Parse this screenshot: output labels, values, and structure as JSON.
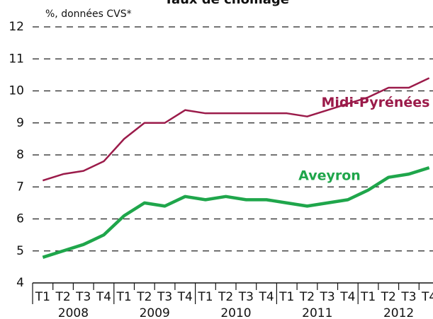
{
  "chart_data": {
    "type": "line",
    "title": "Taux de chômage",
    "subtitle": "%, données CVS*",
    "categories": [
      "T1",
      "T2",
      "T3",
      "T4",
      "T1",
      "T2",
      "T3",
      "T4",
      "T1",
      "T2",
      "T3",
      "T4",
      "T1",
      "T2",
      "T3",
      "T4",
      "T1",
      "T2",
      "T3",
      "T4"
    ],
    "groups": [
      "2008",
      "2009",
      "2010",
      "2011",
      "2012"
    ],
    "series": [
      {
        "name": "Midi-Pyrénées",
        "color": "#9b1b4a",
        "values": [
          7.2,
          7.4,
          7.5,
          7.8,
          8.5,
          9.0,
          9.0,
          9.4,
          9.3,
          9.3,
          9.3,
          9.3,
          9.3,
          9.2,
          9.4,
          9.6,
          9.8,
          10.1,
          10.1,
          10.4
        ]
      },
      {
        "name": "Aveyron",
        "color": "#1fa64b",
        "values": [
          4.8,
          5.0,
          5.2,
          5.5,
          6.1,
          6.5,
          6.4,
          6.7,
          6.6,
          6.7,
          6.6,
          6.6,
          6.5,
          6.4,
          6.5,
          6.6,
          6.9,
          7.3,
          7.4,
          7.6
        ]
      }
    ],
    "ylim": [
      4,
      12
    ],
    "yticks": [
      4,
      5,
      6,
      7,
      8,
      9,
      10,
      11,
      12
    ],
    "grid": true
  }
}
